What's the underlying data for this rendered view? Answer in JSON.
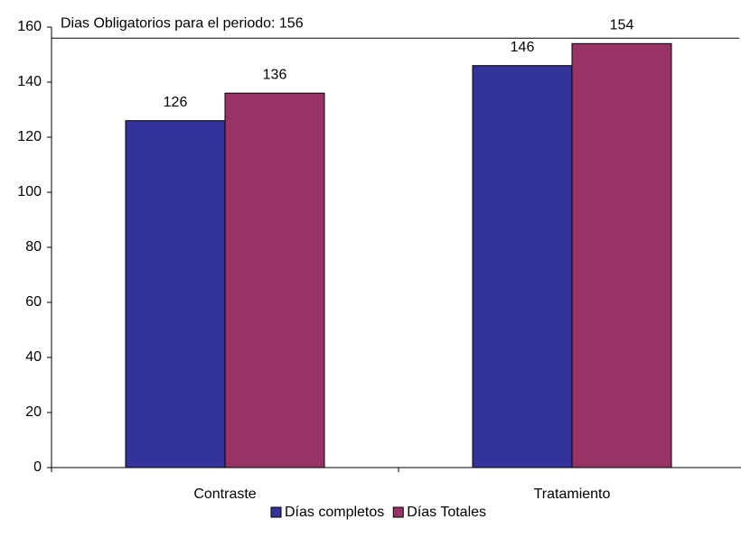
{
  "chart_data": {
    "type": "bar",
    "categories": [
      "Contraste",
      "Tratamiento"
    ],
    "series": [
      {
        "name": "Días completos",
        "color": "#333399",
        "values": [
          126,
          146
        ]
      },
      {
        "name": "Días Totales",
        "color": "#993366",
        "values": [
          136,
          154
        ]
      }
    ],
    "ylim": [
      0,
      160
    ],
    "yticks": [
      0,
      20,
      40,
      60,
      80,
      100,
      120,
      140,
      160
    ],
    "reference_line": {
      "value": 156,
      "label": "Dias Obligatorios para el periodo: 156"
    },
    "legend": "bottom"
  }
}
